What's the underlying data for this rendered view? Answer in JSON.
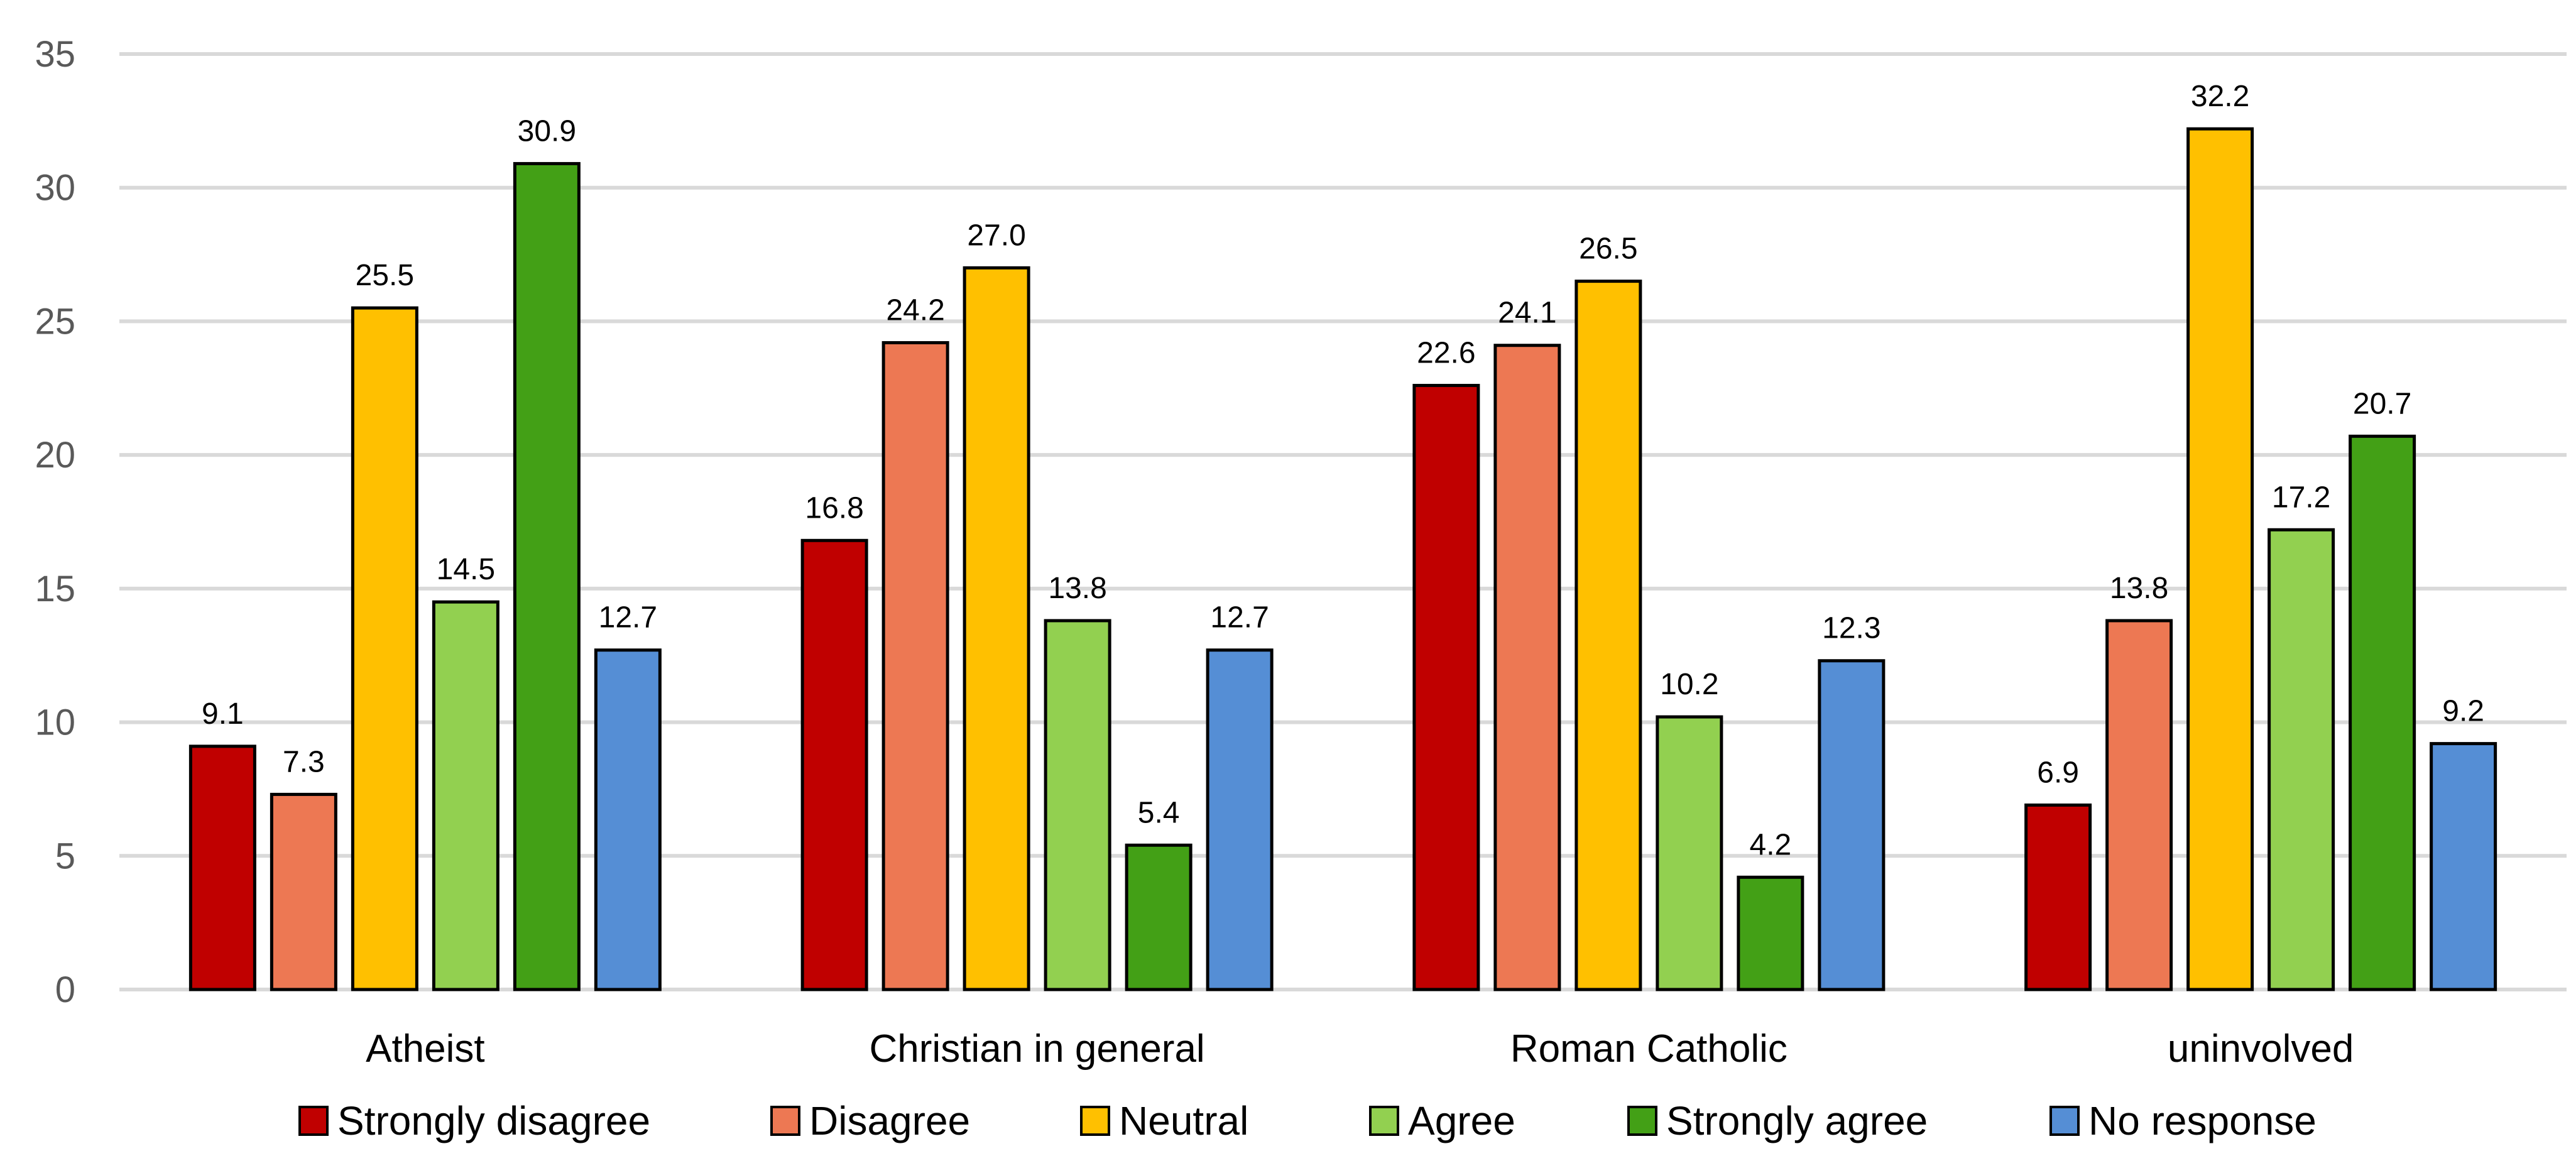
{
  "chart_data": {
    "type": "bar",
    "categories": [
      "Atheist",
      "Christian in general",
      "Roman Catholic",
      "uninvolved"
    ],
    "ylim": [
      0,
      35
    ],
    "yticks": [
      0,
      5,
      10,
      15,
      20,
      25,
      30,
      35
    ],
    "grid": true,
    "legend_position": "bottom",
    "series": [
      {
        "name": "Strongly disagree",
        "color": "#C00000",
        "values": [
          9.1,
          16.8,
          22.6,
          6.9
        ]
      },
      {
        "name": "Disagree",
        "color": "#ED7853",
        "values": [
          7.3,
          24.2,
          24.1,
          13.8
        ]
      },
      {
        "name": "Neutral",
        "color": "#FFC000",
        "values": [
          25.5,
          27.0,
          26.5,
          32.2
        ]
      },
      {
        "name": "Agree",
        "color": "#92D050",
        "values": [
          14.5,
          13.8,
          10.2,
          17.2
        ]
      },
      {
        "name": "Strongly agree",
        "color": "#43A016",
        "values": [
          30.9,
          5.4,
          4.2,
          20.7
        ]
      },
      {
        "name": "No response",
        "color": "#558ED5",
        "values": [
          12.7,
          12.7,
          12.3,
          9.2
        ]
      }
    ],
    "data_labels": [
      [
        "9.1",
        "16.8",
        "22.6",
        "6.9"
      ],
      [
        "7.3",
        "24.2",
        "24.1",
        "13.8"
      ],
      [
        "25.5",
        "27.0",
        "26.5",
        "32.2"
      ],
      [
        "14.5",
        "13.8",
        "10.2",
        "17.2"
      ],
      [
        "30.9",
        "5.4",
        "4.2",
        "20.7"
      ],
      [
        "12.7",
        "12.7",
        "12.3",
        "9.2"
      ]
    ]
  }
}
